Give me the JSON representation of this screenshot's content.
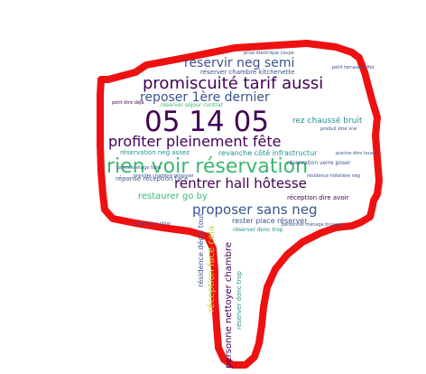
{
  "colors": {
    "outline": "#ee1111",
    "purple": "#440154",
    "indigo": "#3b528b",
    "teal": "#21918c",
    "green": "#3bb872",
    "lime": "#b5de2b"
  },
  "words": [
    {
      "text": "prise électrique coupe",
      "color": "#3b528b"
    },
    {
      "text": "petit terrasse effet",
      "color": "#3b528b"
    },
    {
      "text": "réserver chambre kitchenette",
      "color": "#3b528b"
    },
    {
      "text": "reservir neg semi",
      "color": "#3b528b"
    },
    {
      "text": "promiscuité tarif aussi",
      "color": "#440154"
    },
    {
      "text": "reposer 1ère dernier",
      "color": "#3b528b"
    },
    {
      "text": "réserver séjour contrat",
      "color": "#3bb872"
    },
    {
      "text": "05 14 05",
      "color": "#440154"
    },
    {
      "text": "rez chaussé bruit",
      "color": "#21918c"
    },
    {
      "text": "produit être vrai",
      "color": "#3b528b"
    },
    {
      "text": "profiter pleinement fête",
      "color": "#440154"
    },
    {
      "text": "réservation neg assez",
      "color": "#21918c"
    },
    {
      "text": "revanche côté infrastructur",
      "color": "#21918c"
    },
    {
      "text": "rien voir réservation",
      "color": "#3bb872"
    },
    {
      "text": "rentrer hall hôtesse",
      "color": "#440154"
    },
    {
      "text": "réponse réception face",
      "color": "#3b528b"
    },
    {
      "text": "restaurer go by",
      "color": "#3bb872"
    },
    {
      "text": "réception dire avoir",
      "color": "#440154"
    },
    {
      "text": "proposer sans neg",
      "color": "#3b528b"
    },
    {
      "text": "rester place réserver",
      "color": "#3b528b"
    },
    {
      "text": "réservation verre poser",
      "color": "#3b528b"
    },
    {
      "text": "résidence hôtelière neg",
      "color": "#3b528b"
    },
    {
      "text": "personnel ménage bruyant",
      "color": "#3b528b"
    },
    {
      "text": "résidence décin tout",
      "color": "#3b528b"
    },
    {
      "text": "réception face cela",
      "color": "#b5de2b"
    },
    {
      "text": "personne nettoyer chambre",
      "color": "#440154"
    },
    {
      "text": "réserver donc trop",
      "color": "#21918c"
    },
    {
      "text": "pieds être idéal",
      "color": "#3b528b"
    },
    {
      "text": "premier étage faire",
      "color": "#3b528b"
    },
    {
      "text": "prendre chambre proposer",
      "color": "#3b528b"
    },
    {
      "text": "petit être déjà",
      "color": "#440154"
    },
    {
      "text": "piscine être touse",
      "color": "#3b528b"
    }
  ]
}
